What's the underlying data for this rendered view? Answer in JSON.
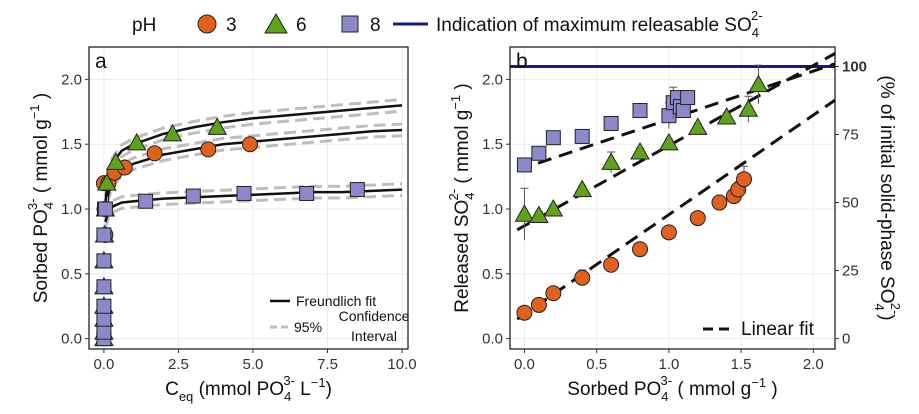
{
  "legend": {
    "title": "pH",
    "series": [
      {
        "label": "3",
        "shape": "circle",
        "color": "#e0611d"
      },
      {
        "label": "6",
        "shape": "triangle",
        "color": "#5fa319"
      },
      {
        "label": "8",
        "shape": "square",
        "color": "#8d88c9"
      }
    ],
    "max_line_label": "Indication of maximum releasable SO",
    "max_line_sub": "4",
    "max_line_sup": "2-",
    "max_line_color": "#1a1a80"
  },
  "chart_data": [
    {
      "type": "scatter",
      "panel_label": "a",
      "xlabel": {
        "main": "C",
        "sub": "eq",
        "rest": " (mmol PO",
        "ion_sub": "4",
        "ion_sup": "3-",
        "end": " L",
        "unit_sup": "−1",
        "close": ")"
      },
      "ylabel": {
        "main": "Sorbed PO",
        "ion_sub": "4",
        "ion_sup": "3-",
        "rest": " ( mmol g",
        "unit_sup": "−1",
        "close": " )"
      },
      "xlim": [
        -0.5,
        10.2
      ],
      "ylim": [
        -0.08,
        2.25
      ],
      "xticks": [
        0.0,
        2.5,
        5.0,
        7.5,
        10.0
      ],
      "xtick_labels": [
        "0.0",
        "2.5",
        "5.0",
        "7.5",
        "10.0"
      ],
      "yticks": [
        0.0,
        0.5,
        1.0,
        1.5,
        2.0
      ],
      "ytick_labels": [
        "0.0",
        "0.5",
        "1.0",
        "1.5",
        "2.0"
      ],
      "series": [
        {
          "shape": "circle",
          "color": "#e0611d",
          "x": [
            0.0,
            0.02,
            0.05,
            0.15,
            0.35,
            0.7,
            1.7,
            3.5,
            4.9
          ],
          "y": [
            1.2,
            1.0,
            0.8,
            1.2,
            1.28,
            1.32,
            1.43,
            1.46,
            1.5
          ]
        },
        {
          "shape": "triangle",
          "color": "#5fa319",
          "x": [
            0.0,
            0.0,
            0.0,
            0.0,
            0.0,
            0.0,
            0.02,
            0.05,
            0.1,
            0.4,
            1.1,
            2.3,
            3.8
          ],
          "y": [
            0.0,
            0.05,
            0.15,
            0.25,
            0.4,
            0.6,
            0.8,
            1.0,
            1.2,
            1.36,
            1.51,
            1.58,
            1.63
          ]
        },
        {
          "shape": "square",
          "color": "#8d88c9",
          "x": [
            0.0,
            0.0,
            0.0,
            0.0,
            0.0,
            0.0,
            0.0,
            0.02,
            0.05,
            1.4,
            3.0,
            4.7,
            6.8,
            8.5
          ],
          "y": [
            0.0,
            0.05,
            0.15,
            0.25,
            0.4,
            0.6,
            0.8,
            1.0,
            1.0,
            1.06,
            1.1,
            1.12,
            1.12,
            1.15
          ]
        }
      ],
      "fits": [
        {
          "name": "pH 3",
          "x": [
            0.05,
            0.15,
            0.3,
            0.6,
            1,
            2,
            3,
            4,
            5,
            6,
            7,
            8,
            9,
            10
          ],
          "y": [
            0.95,
            1.12,
            1.22,
            1.3,
            1.35,
            1.42,
            1.46,
            1.5,
            1.52,
            1.54,
            1.56,
            1.58,
            1.6,
            1.61
          ]
        },
        {
          "name": "pH 6",
          "x": [
            0.05,
            0.15,
            0.3,
            0.6,
            1,
            2,
            3,
            4,
            5,
            6,
            7,
            8,
            9,
            10
          ],
          "y": [
            1.05,
            1.25,
            1.36,
            1.45,
            1.5,
            1.58,
            1.63,
            1.67,
            1.7,
            1.72,
            1.74,
            1.76,
            1.78,
            1.8
          ]
        },
        {
          "name": "pH 8",
          "x": [
            0.05,
            0.15,
            0.3,
            0.6,
            1,
            2,
            3,
            4,
            5,
            6,
            7,
            8,
            9,
            10
          ],
          "y": [
            0.9,
            0.98,
            1.02,
            1.05,
            1.06,
            1.08,
            1.09,
            1.1,
            1.11,
            1.12,
            1.13,
            1.13,
            1.14,
            1.15
          ]
        }
      ],
      "fit_legend": {
        "fit_label": "Freundlich fit",
        "ci_prefix": "95%",
        "ci_line1": "Confidence",
        "ci_line2": "Interval"
      }
    },
    {
      "type": "scatter",
      "panel_label": "b",
      "xlabel": {
        "main": "Sorbed PO",
        "ion_sub": "4",
        "ion_sup": "3-",
        "rest": " ( mmol g",
        "unit_sup": "−1",
        "close": " )"
      },
      "ylabel": {
        "main": "Released SO",
        "ion_sub": "4",
        "ion_sup": "2-",
        "rest": " ( mmol g",
        "unit_sup": "−1",
        "close": " )"
      },
      "y2label": {
        "main": "(% of initial solid-phase SO",
        "ion_sub": "4",
        "ion_sup": "2-",
        "close": ")"
      },
      "xlim": [
        -0.1,
        2.15
      ],
      "ylim": [
        -0.08,
        2.25
      ],
      "xticks": [
        0.0,
        0.5,
        1.0,
        1.5,
        2.0
      ],
      "xtick_labels": [
        "0.0",
        "0.5",
        "1.0",
        "1.5",
        "2.0"
      ],
      "yticks": [
        0.0,
        0.5,
        1.0,
        1.5,
        2.0
      ],
      "ytick_labels": [
        "0.0",
        "0.5",
        "1.0",
        "1.5",
        "2.0"
      ],
      "y2ticks": [
        0.0,
        0.525,
        1.05,
        1.575,
        2.1
      ],
      "y2tick_labels": [
        "0",
        "25",
        "50",
        "75",
        "100"
      ],
      "max_line_y": 2.1,
      "series": [
        {
          "shape": "circle",
          "color": "#e0611d",
          "x": [
            0.0,
            0.1,
            0.2,
            0.4,
            0.6,
            0.8,
            1.0,
            1.2,
            1.35,
            1.45,
            1.48,
            1.52
          ],
          "y": [
            0.2,
            0.26,
            0.35,
            0.47,
            0.57,
            0.69,
            0.82,
            0.93,
            1.05,
            1.1,
            1.15,
            1.23
          ],
          "err": [
            0.03,
            0.03,
            0.03,
            0.06,
            0.03,
            0.03,
            0.03,
            0.03,
            0.03,
            0.05,
            0.06,
            0.1
          ]
        },
        {
          "shape": "triangle",
          "color": "#5fa319",
          "x": [
            0.0,
            0.1,
            0.2,
            0.4,
            0.6,
            0.8,
            1.0,
            1.2,
            1.4,
            1.55,
            1.62
          ],
          "y": [
            0.96,
            0.95,
            1.0,
            1.15,
            1.36,
            1.44,
            1.51,
            1.63,
            1.71,
            1.77,
            1.96
          ],
          "err": [
            0.2,
            0.03,
            0.03,
            0.03,
            0.08,
            0.03,
            0.03,
            0.03,
            0.03,
            0.1,
            0.15
          ]
        },
        {
          "shape": "square",
          "color": "#8d88c9",
          "x": [
            0.0,
            0.1,
            0.2,
            0.4,
            0.6,
            0.8,
            1.0,
            1.03,
            1.06,
            1.08,
            1.1,
            1.13
          ],
          "y": [
            1.34,
            1.43,
            1.55,
            1.56,
            1.66,
            1.76,
            1.72,
            1.82,
            1.86,
            1.79,
            1.76,
            1.86
          ],
          "err": [
            0.03,
            0.03,
            0.03,
            0.03,
            0.03,
            0.03,
            0.1,
            0.12,
            0.05,
            0.05,
            0.05,
            0.05
          ]
        }
      ],
      "fits": [
        {
          "name": "pH 3",
          "x": [
            -0.05,
            2.15
          ],
          "y": [
            0.15,
            1.84
          ]
        },
        {
          "name": "pH 6",
          "x": [
            -0.05,
            2.15
          ],
          "y": [
            0.84,
            2.2
          ]
        },
        {
          "name": "pH 8",
          "x": [
            -0.05,
            2.15
          ],
          "y": [
            1.3,
            2.12
          ]
        }
      ],
      "fit_legend": {
        "fit_label": "Linear fit"
      }
    }
  ]
}
